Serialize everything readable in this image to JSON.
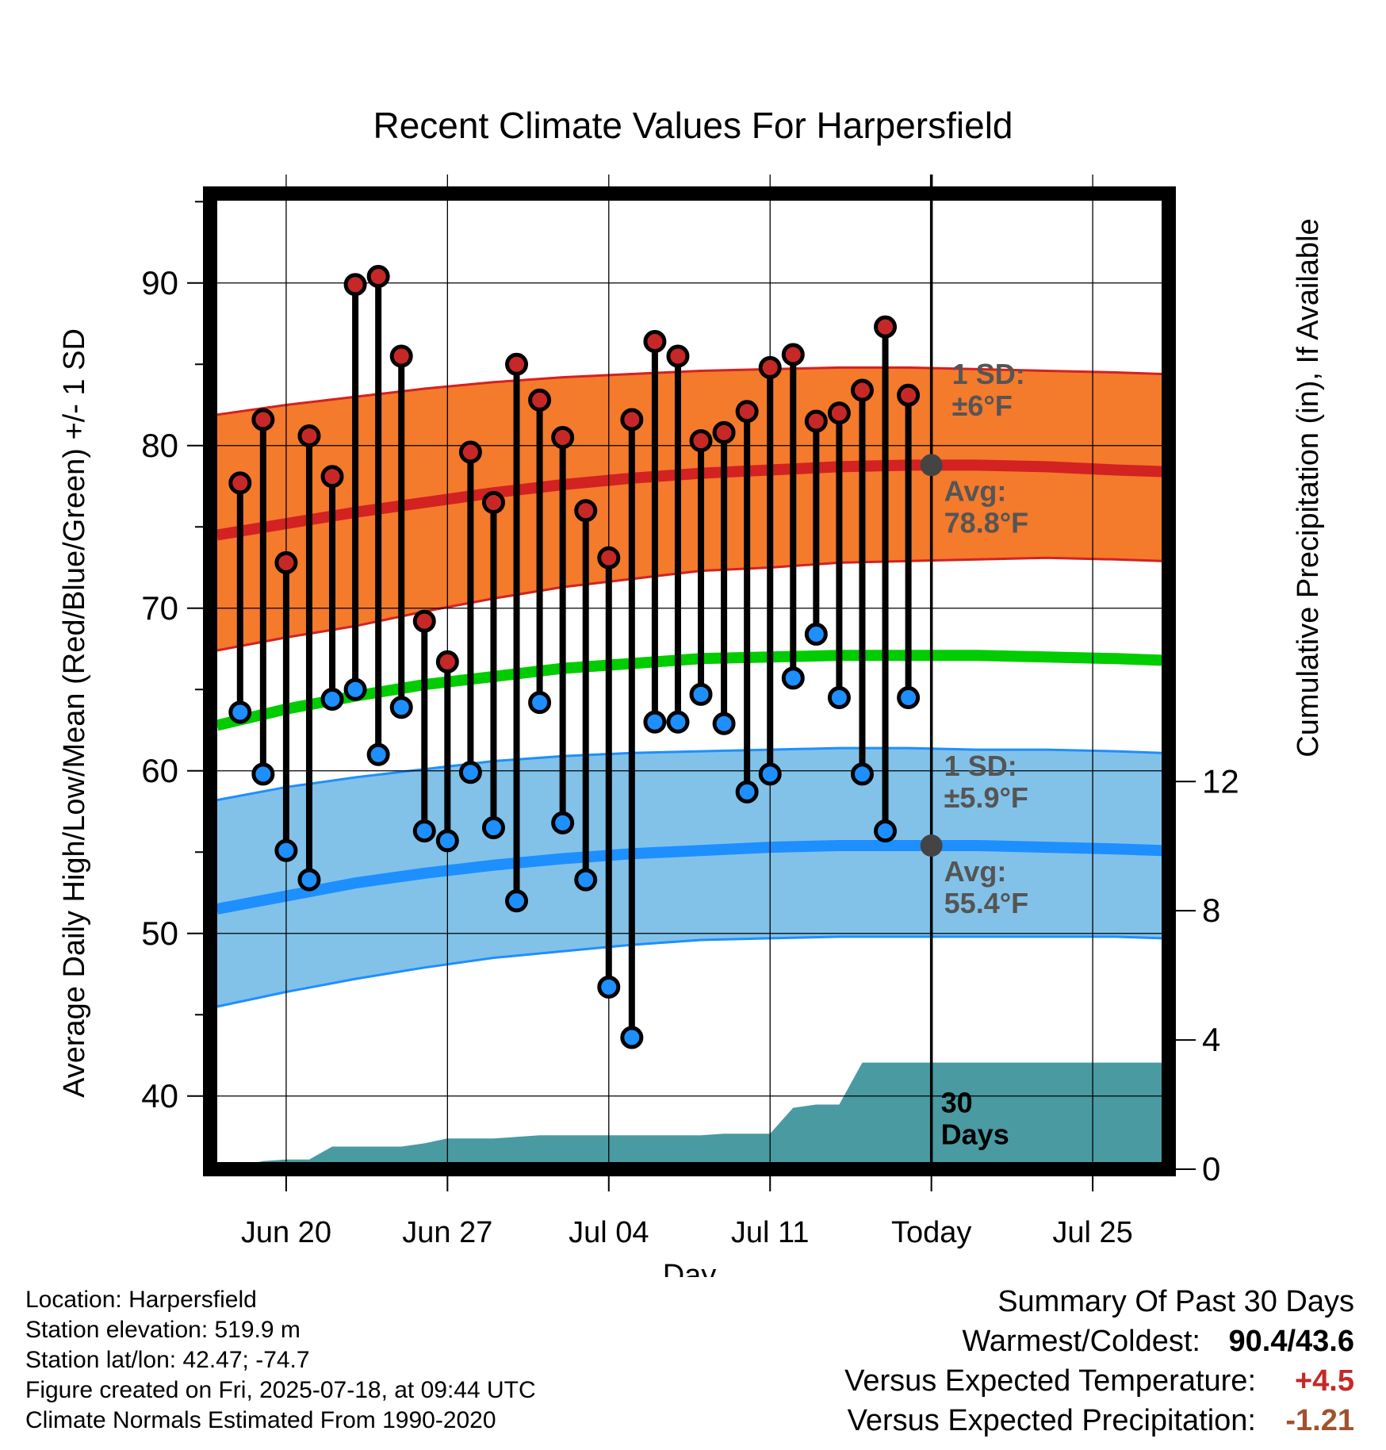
{
  "title": "Recent Climate Values For Harpersfield",
  "chart_data": {
    "type": "line",
    "title": "Recent Climate Values For Harpersfield",
    "xlabel": "Day",
    "ylabel_left": "Average Daily High/Low/Mean (Red/Blue/Green) +/- 1 SD",
    "ylabel_right": "Cumulative Precipitation (in), If Available",
    "ylim_left": [
      35.5,
      95.5
    ],
    "ylim_right": [
      0,
      30.2
    ],
    "xlim": [
      -3.3,
      38.3
    ],
    "yticks_left": [
      40,
      50,
      60,
      70,
      80,
      90
    ],
    "yticks_right": [
      0,
      4,
      8,
      12
    ],
    "xticks": [
      {
        "x": 0,
        "label": "Jun 20"
      },
      {
        "x": 7,
        "label": "Jun 27"
      },
      {
        "x": 14,
        "label": "Jul 04"
      },
      {
        "x": 21,
        "label": "Jul 11"
      },
      {
        "x": 28,
        "label": "Today"
      },
      {
        "x": 35,
        "label": "Jul 25"
      }
    ],
    "grid": true,
    "days": [
      -2,
      -1,
      0,
      1,
      2,
      3,
      4,
      5,
      6,
      7,
      8,
      9,
      10,
      11,
      12,
      13,
      14,
      15,
      16,
      17,
      18,
      19,
      20,
      21,
      22,
      23,
      24,
      25,
      26,
      27
    ],
    "highs": [
      77.7,
      81.6,
      72.8,
      80.6,
      78.1,
      89.9,
      90.4,
      85.5,
      69.2,
      66.7,
      79.6,
      76.5,
      85.0,
      82.8,
      80.5,
      76.0,
      73.1,
      81.6,
      86.4,
      85.5,
      80.3,
      80.8,
      82.1,
      84.8,
      85.6,
      81.5,
      82.0,
      83.4,
      87.3,
      83.1
    ],
    "lows": [
      63.6,
      59.8,
      55.1,
      53.3,
      64.4,
      65.0,
      61.0,
      63.9,
      56.3,
      55.7,
      59.9,
      56.5,
      52.0,
      64.2,
      56.8,
      53.3,
      46.7,
      43.6,
      63.0,
      63.0,
      64.7,
      62.9,
      58.7,
      59.8,
      65.7,
      68.4,
      64.5,
      59.8,
      56.3,
      64.5
    ],
    "normals_x": [
      -3,
      0,
      3,
      6,
      9,
      12,
      15,
      18,
      21,
      24,
      27,
      30,
      33,
      36,
      38
    ],
    "normal_high": [
      74.5,
      75.2,
      75.9,
      76.5,
      77.1,
      77.6,
      78.0,
      78.3,
      78.5,
      78.7,
      78.8,
      78.8,
      78.7,
      78.5,
      78.4
    ],
    "normal_high_sd_upper": [
      81.9,
      82.5,
      83.0,
      83.5,
      83.9,
      84.2,
      84.4,
      84.6,
      84.7,
      84.8,
      84.8,
      84.7,
      84.6,
      84.5,
      84.4
    ],
    "normal_high_sd_lower": [
      67.4,
      68.2,
      68.9,
      69.8,
      70.6,
      71.3,
      71.8,
      72.3,
      72.5,
      72.8,
      72.9,
      73.0,
      73.1,
      73.0,
      72.9
    ],
    "normal_mean": [
      62.8,
      63.8,
      64.6,
      65.3,
      65.8,
      66.3,
      66.6,
      66.9,
      67.0,
      67.1,
      67.1,
      67.1,
      67.0,
      66.9,
      66.8
    ],
    "normal_low": [
      51.5,
      52.3,
      53.1,
      53.7,
      54.2,
      54.6,
      54.9,
      55.1,
      55.3,
      55.4,
      55.4,
      55.4,
      55.3,
      55.2,
      55.1
    ],
    "normal_low_sd_upper": [
      58.2,
      59.0,
      59.6,
      60.1,
      60.6,
      60.9,
      61.1,
      61.2,
      61.3,
      61.4,
      61.4,
      61.3,
      61.3,
      61.2,
      61.1
    ],
    "normal_low_sd_lower": [
      45.5,
      46.4,
      47.2,
      47.9,
      48.5,
      48.9,
      49.3,
      49.6,
      49.7,
      49.8,
      49.8,
      49.8,
      49.8,
      49.8,
      49.7
    ],
    "precip_cumulative": [
      [
        -2.6,
        0.0
      ],
      [
        -2,
        0.1
      ],
      [
        -1,
        0.25
      ],
      [
        0,
        0.3
      ],
      [
        1,
        0.3
      ],
      [
        2,
        0.7
      ],
      [
        3,
        0.7
      ],
      [
        4,
        0.7
      ],
      [
        5,
        0.7
      ],
      [
        6,
        0.8
      ],
      [
        7,
        0.95
      ],
      [
        8,
        0.95
      ],
      [
        9,
        0.95
      ],
      [
        10,
        1.0
      ],
      [
        11,
        1.05
      ],
      [
        12,
        1.05
      ],
      [
        13,
        1.05
      ],
      [
        14,
        1.05
      ],
      [
        15,
        1.05
      ],
      [
        16,
        1.05
      ],
      [
        17,
        1.05
      ],
      [
        18,
        1.05
      ],
      [
        19,
        1.1
      ],
      [
        20,
        1.1
      ],
      [
        21,
        1.1
      ],
      [
        22,
        1.9
      ],
      [
        23,
        2.0
      ],
      [
        24,
        2.0
      ],
      [
        25,
        3.3
      ],
      [
        26,
        3.3
      ],
      [
        27,
        3.3
      ],
      [
        28,
        3.3
      ],
      [
        38,
        3.3
      ]
    ],
    "annotations": {
      "high_sd": "1 SD:\n±6°F",
      "high_avg": "Avg:\n78.8°F",
      "low_sd": "1 SD:\n±5.9°F",
      "low_avg": "Avg:\n55.4°F",
      "window": "30\nDays"
    },
    "avg_markers": [
      {
        "x": 28,
        "y": 78.8
      },
      {
        "x": 28,
        "y": 55.4
      }
    ],
    "colors": {
      "high_band": "#f47a2c",
      "high_line": "#d32222",
      "mean_line": "#00cc00",
      "low_band": "#82c2e8",
      "low_line": "#1e8fff",
      "precip_fill": "#4a9aa2",
      "high_dot": "#c62828",
      "low_dot": "#1e8fff",
      "annotation_text": "#555555"
    }
  },
  "footer_left": [
    "Location: Harpersfield",
    "Station elevation: 519.9 m",
    "Station lat/lon: 42.47; -74.7",
    "Figure created on Fri, 2025-07-18, at 09:44 UTC",
    "Climate Normals Estimated From 1990-2020"
  ],
  "summary": {
    "heading": "Summary Of Past 30 Days",
    "warmest_label": "Warmest/Coldest:",
    "warmest_value": "90.4/43.6",
    "temp_label": "Versus Expected Temperature:",
    "temp_value": "+4.5",
    "precip_label": "Versus Expected Precipitation:",
    "precip_value": "-1.21"
  }
}
